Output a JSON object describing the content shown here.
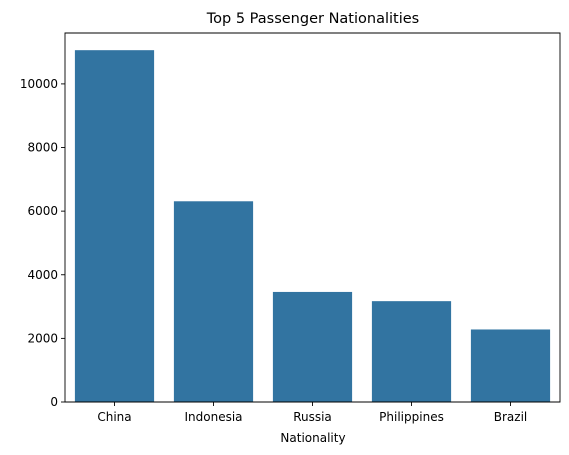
{
  "chart_data": {
    "type": "bar",
    "title": "Top 5 Passenger Nationalities",
    "xlabel": "Nationality",
    "ylabel": "",
    "categories": [
      "China",
      "Indonesia",
      "Russia",
      "Philippines",
      "Brazil"
    ],
    "values": [
      11060,
      6310,
      3460,
      3170,
      2280
    ],
    "ylim": [
      0,
      11600
    ],
    "yticks": [
      0,
      2000,
      4000,
      6000,
      8000,
      10000
    ],
    "ytick_labels": [
      "0",
      "2000",
      "4000",
      "6000",
      "8000",
      "10000"
    ],
    "grid": false,
    "legend": "none",
    "bar_color": "#3274a1"
  }
}
